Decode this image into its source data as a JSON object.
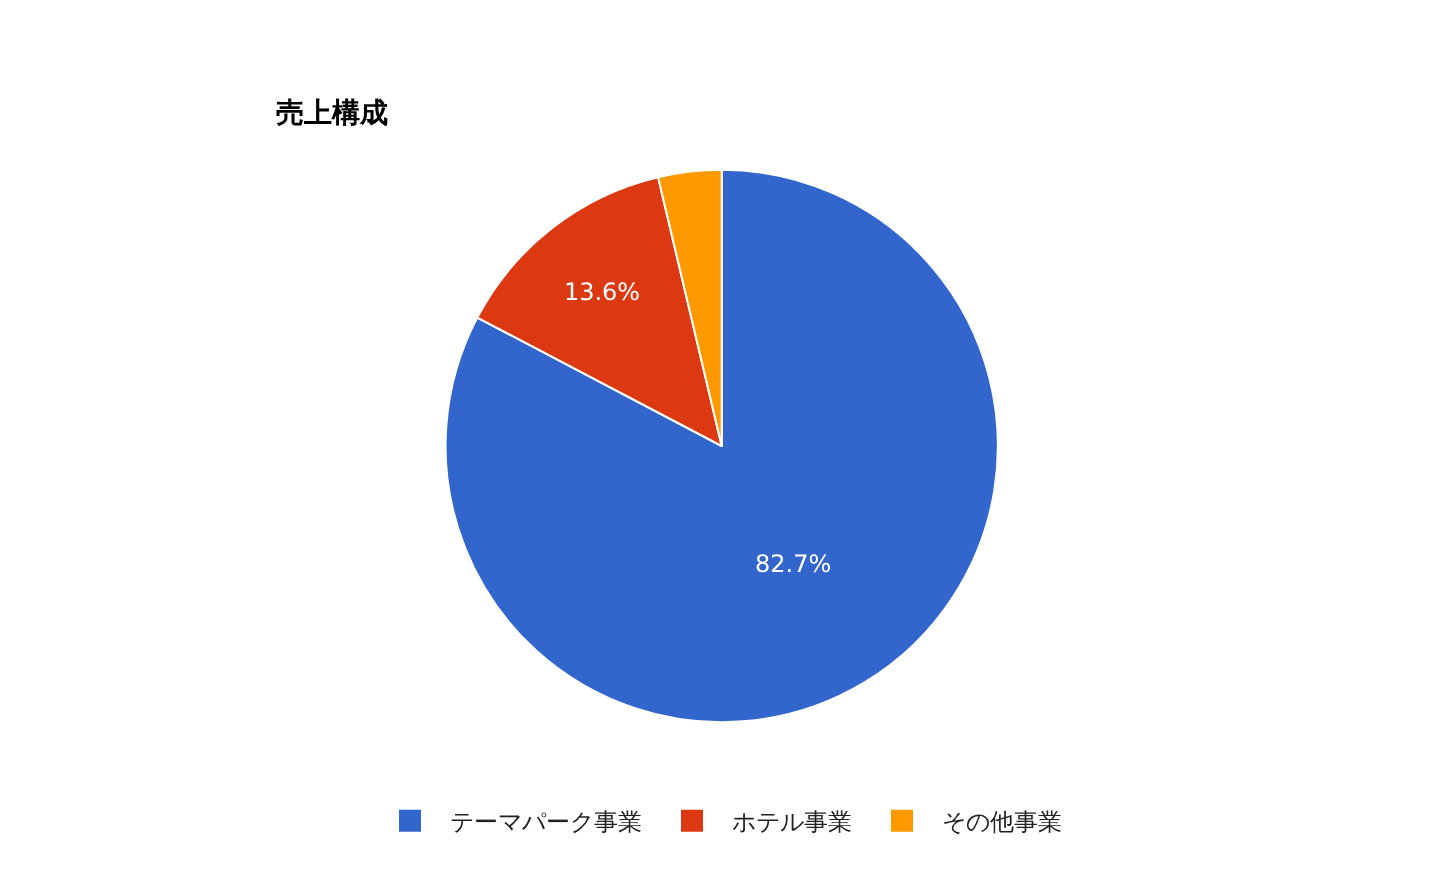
{
  "chart_data": {
    "type": "pie",
    "title": "売上構成",
    "categories": [
      "テーマパーク事業",
      "ホテル事業",
      "その他事業"
    ],
    "values": [
      82.7,
      13.6,
      3.7
    ],
    "colors": [
      "#3366cc",
      "#dc3912",
      "#ff9900"
    ],
    "value_labels": [
      "82.7%",
      "13.6%",
      null
    ],
    "legend": "bottom"
  }
}
